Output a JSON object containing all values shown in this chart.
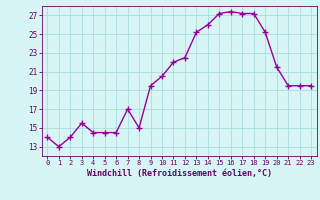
{
  "x": [
    0,
    1,
    2,
    3,
    4,
    5,
    6,
    7,
    8,
    9,
    10,
    11,
    12,
    13,
    14,
    15,
    16,
    17,
    18,
    19,
    20,
    21,
    22,
    23
  ],
  "y": [
    14.0,
    13.0,
    14.0,
    15.5,
    14.5,
    14.5,
    14.5,
    17.0,
    15.0,
    19.5,
    20.5,
    22.0,
    22.5,
    25.2,
    26.0,
    27.2,
    27.4,
    27.2,
    27.2,
    25.2,
    21.5,
    19.5,
    19.5,
    19.5
  ],
  "line_color": "#990099",
  "marker": "+",
  "marker_size": 4,
  "bg_color": "#d8f5f5",
  "grid_color": "#aadddd",
  "xlabel": "Windchill (Refroidissement éolien,°C)",
  "xlabel_color": "#660066",
  "tick_color": "#660066",
  "ylim": [
    12,
    28
  ],
  "xlim": [
    -0.5,
    23.5
  ],
  "yticks": [
    13,
    15,
    17,
    19,
    21,
    23,
    25,
    27
  ],
  "xticks": [
    0,
    1,
    2,
    3,
    4,
    5,
    6,
    7,
    8,
    9,
    10,
    11,
    12,
    13,
    14,
    15,
    16,
    17,
    18,
    19,
    20,
    21,
    22,
    23
  ],
  "line_width": 1.0
}
